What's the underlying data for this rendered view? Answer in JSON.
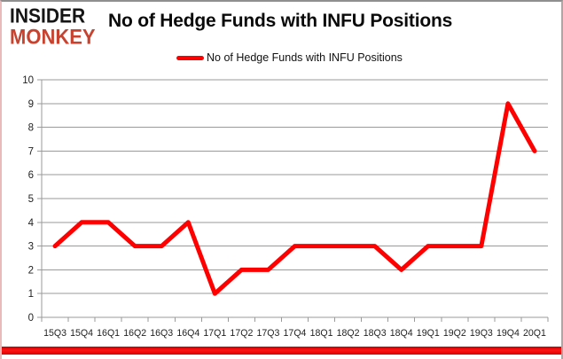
{
  "logo": {
    "line1": "INSIDER",
    "line2": "MONKEY"
  },
  "title": "No of Hedge Funds with INFU Positions",
  "legend": {
    "label": "No of Hedge Funds with INFU Positions"
  },
  "chart_data": {
    "type": "line",
    "title": "No of Hedge Funds with INFU Positions",
    "categories": [
      "15Q3",
      "15Q4",
      "16Q1",
      "16Q2",
      "16Q3",
      "16Q4",
      "17Q1",
      "17Q2",
      "17Q3",
      "17Q4",
      "18Q1",
      "18Q2",
      "18Q3",
      "18Q4",
      "19Q1",
      "19Q2",
      "19Q3",
      "19Q4",
      "20Q1"
    ],
    "series": [
      {
        "name": "No of Hedge Funds with INFU Positions",
        "values": [
          3,
          4,
          4,
          3,
          3,
          4,
          1,
          2,
          2,
          3,
          3,
          3,
          3,
          2,
          3,
          3,
          3,
          9,
          7
        ]
      }
    ],
    "xlabel": "",
    "ylabel": "",
    "ylim": [
      0,
      10
    ],
    "yticks": [
      0,
      1,
      2,
      3,
      4,
      5,
      6,
      7,
      8,
      9,
      10
    ],
    "grid": true,
    "legend_position": "top-center",
    "colors": {
      "line": "#fe0000",
      "grid": "#9a9a9a",
      "axis": "#9a9a9a",
      "tick_text": "#222222",
      "logo_red": "#c7432f",
      "bottom_bar": "#e60000"
    }
  }
}
